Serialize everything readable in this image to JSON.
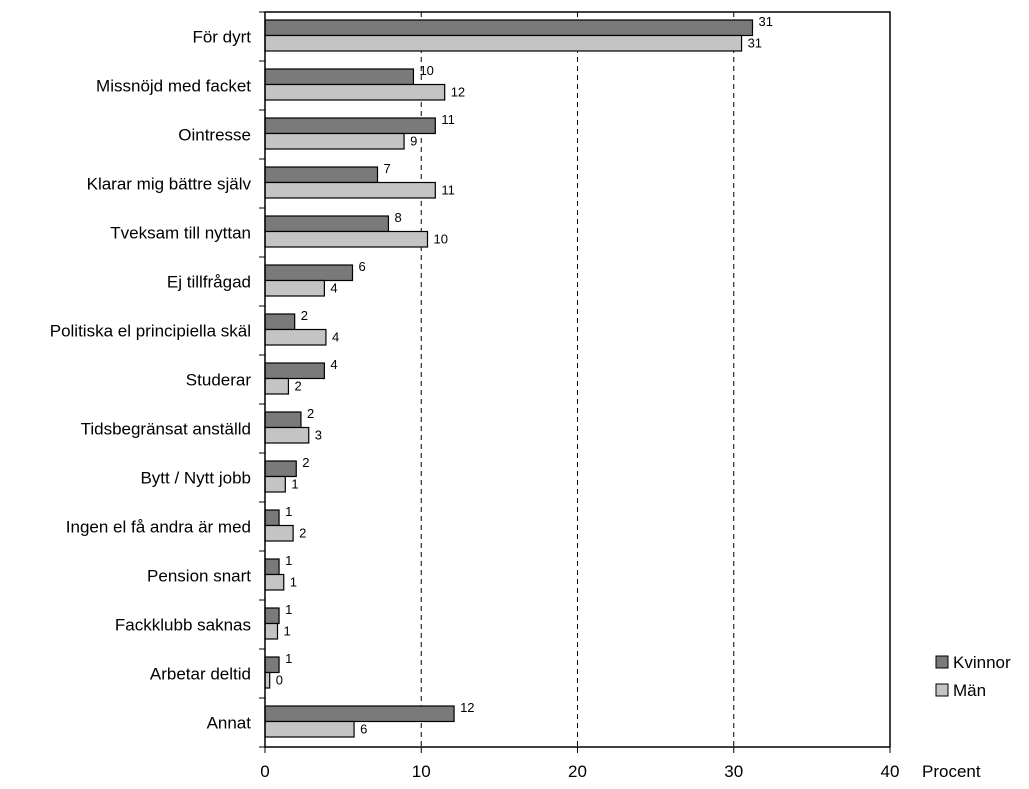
{
  "chart_data": {
    "type": "bar",
    "orientation": "horizontal",
    "categories": [
      "För dyrt",
      "Missnöjd med facket",
      "Ointresse",
      "Klarar mig bättre själv",
      "Tveksam till nyttan",
      "Ej tillfrågad",
      "Politiska el principiella skäl",
      "Studerar",
      "Tidsbegränsat anställd",
      "Bytt / Nytt jobb",
      "Ingen el få andra är med",
      "Pension snart",
      "Fackklubb saknas",
      "Arbetar deltid",
      "Annat"
    ],
    "series": [
      {
        "name": "Kvinnor",
        "color": "#7a7a7a",
        "values": [
          31.2,
          9.5,
          10.9,
          7.2,
          7.9,
          5.6,
          1.9,
          3.8,
          2.3,
          2.0,
          0.9,
          0.9,
          0.9,
          0.9,
          12.1
        ],
        "labels": [
          "31",
          "10",
          "11",
          "7",
          "8",
          "6",
          "2",
          "4",
          "2",
          "2",
          "1",
          "1",
          "1",
          "1",
          "12"
        ]
      },
      {
        "name": "Män",
        "color": "#c4c4c4",
        "values": [
          30.5,
          11.5,
          8.9,
          10.9,
          10.4,
          3.8,
          3.9,
          1.5,
          2.8,
          1.3,
          1.8,
          1.2,
          0.8,
          0.3,
          5.7
        ],
        "labels": [
          "31",
          "12",
          "9",
          "11",
          "10",
          "4",
          "4",
          "2",
          "3",
          "1",
          "2",
          "1",
          "1",
          "0",
          "6"
        ]
      }
    ],
    "xlim": [
      0,
      40
    ],
    "xticks": [
      "0",
      "10",
      "20",
      "30",
      "40"
    ],
    "xlabel": "Procent",
    "grid": "vertical dashed",
    "legend_position": "bottom-right"
  }
}
